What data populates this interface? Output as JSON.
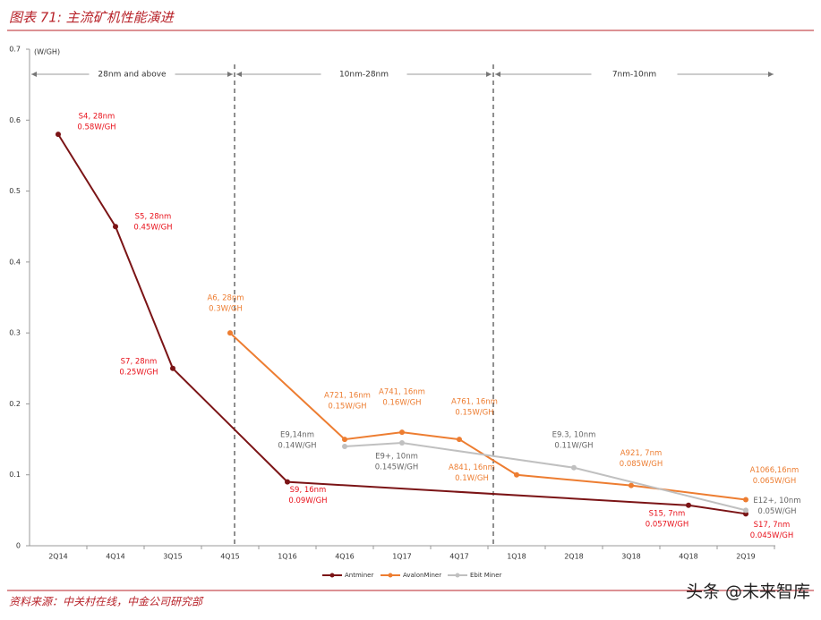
{
  "header": {
    "title": "图表 71: 主流矿机性能演进"
  },
  "chart_data": {
    "type": "line",
    "y_unit": "(W/GH)",
    "categories": [
      "2Q14",
      "4Q14",
      "3Q15",
      "4Q15",
      "1Q16",
      "4Q16",
      "1Q17",
      "4Q17",
      "1Q18",
      "2Q18",
      "3Q18",
      "4Q18",
      "2Q19"
    ],
    "ylim": [
      0,
      0.7
    ],
    "yticks": [
      0,
      0.1,
      0.2,
      0.3,
      0.4,
      0.5,
      0.6,
      0.7
    ],
    "periods": [
      "28nm and above",
      "10nm-28nm",
      "7nm-10nm"
    ],
    "series": [
      {
        "name": "Antminer",
        "color": "#7b1416",
        "label_color": "#e8101a",
        "x": [
          "2Q14",
          "4Q14",
          "3Q15",
          "1Q16",
          "4Q18",
          "2Q19"
        ],
        "values": [
          0.58,
          0.45,
          0.25,
          0.09,
          0.057,
          0.045
        ],
        "point_names": [
          "S4, 28nm",
          "S5, 28nm",
          "S7, 28nm",
          "S9, 16nm",
          "S15, 7nm",
          "S17, 7nm"
        ],
        "value_labels": [
          "0.58W/GH",
          "0.45W/GH",
          "0.25W/GH",
          "0.09W/GH",
          "0.057W/GH",
          "0.045W/GH"
        ]
      },
      {
        "name": "AvalonMiner",
        "color": "#ed7d31",
        "label_color": "#ed7d31",
        "x": [
          "4Q15",
          "4Q16",
          "1Q17",
          "4Q17",
          "1Q18",
          "3Q18",
          "2Q19"
        ],
        "values": [
          0.3,
          0.15,
          0.16,
          0.15,
          0.1,
          0.085,
          0.065
        ],
        "point_names": [
          "A6, 28nm",
          "A721, 16nm",
          "A741, 16nm",
          "A761, 16nm",
          "A841, 16nm",
          "A921, 7nm",
          "A1066,16nm"
        ],
        "value_labels": [
          "0.3W/GH",
          "0.15W/GH",
          "0.16W/GH",
          "0.15W/GH",
          "0.1W/GH",
          "0.085W/GH",
          "0.065W/GH"
        ]
      },
      {
        "name": "Ebit Miner",
        "color": "#c0c0c0",
        "label_color": "#666666",
        "x": [
          "4Q16",
          "1Q17",
          "2Q18",
          "2Q19"
        ],
        "values": [
          0.14,
          0.145,
          0.11,
          0.05
        ],
        "point_names": [
          "E9,14nm",
          "E9+, 10nm",
          "E9.3, 10nm",
          "E12+, 10nm"
        ],
        "value_labels": [
          "0.14W/GH",
          "0.145W/GH",
          "0.11W/GH",
          "0.05W/GH"
        ]
      }
    ]
  },
  "footer": {
    "source": "资料来源：中关村在线，中金公司研究部",
    "watermark": "头条 @未来智库"
  }
}
